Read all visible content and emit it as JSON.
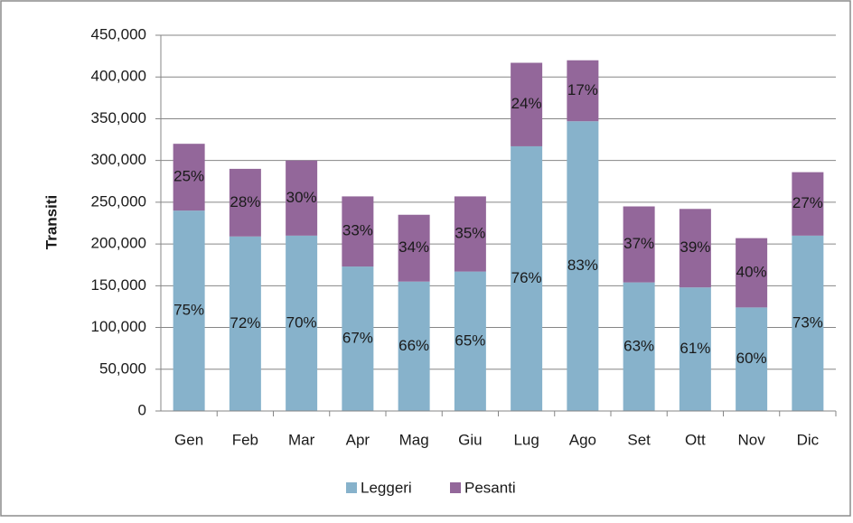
{
  "chart_data": {
    "type": "stacked_bar",
    "y_label": "Transiti",
    "categories": [
      "Gen",
      "Feb",
      "Mar",
      "Apr",
      "Mag",
      "Giu",
      "Lug",
      "Ago",
      "Set",
      "Ott",
      "Nov",
      "Dic"
    ],
    "series": [
      {
        "name": "Leggeri",
        "color": "#87b2cb",
        "values": [
          240000,
          209000,
          210000,
          173000,
          155000,
          167000,
          317000,
          347000,
          154000,
          148000,
          124000,
          210000
        ],
        "percent_labels": [
          "75%",
          "72%",
          "70%",
          "67%",
          "66%",
          "65%",
          "76%",
          "83%",
          "63%",
          "61%",
          "60%",
          "73%"
        ]
      },
      {
        "name": "Pesanti",
        "color": "#93679a",
        "values": [
          80000,
          81000,
          90000,
          84000,
          80000,
          90000,
          100000,
          73000,
          91000,
          94000,
          83000,
          76000
        ],
        "percent_labels": [
          "25%",
          "28%",
          "30%",
          "33%",
          "34%",
          "35%",
          "24%",
          "17%",
          "37%",
          "39%",
          "40%",
          "27%"
        ]
      }
    ],
    "ylim": [
      0,
      450000
    ],
    "yticks": [
      0,
      {
        "value": 50000,
        "label": "50,000"
      },
      {
        "value": 100000,
        "label": "100,000"
      },
      {
        "value": 150000,
        "label": "150,000"
      },
      {
        "value": 200000,
        "label": "200,000"
      },
      {
        "value": 250000,
        "label": "250,000"
      },
      {
        "value": 300000,
        "label": "300,000"
      },
      {
        "value": 350000,
        "label": "350,000"
      },
      {
        "value": 400000,
        "label": "400,000"
      },
      {
        "value": 450000,
        "label": "450,000"
      }
    ],
    "grid": true,
    "legend": "bottom"
  }
}
